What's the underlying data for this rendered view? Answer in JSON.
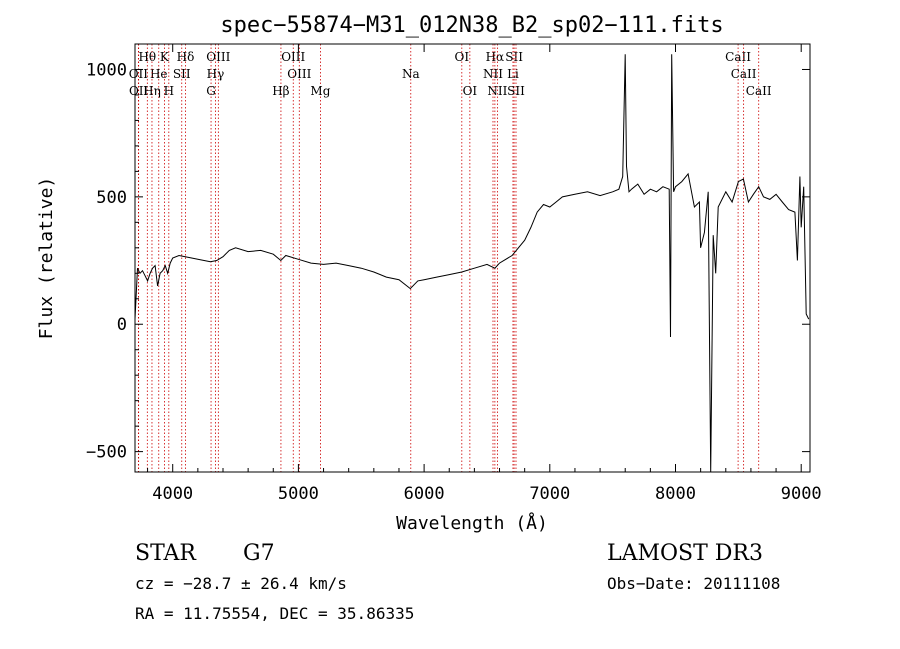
{
  "chart_data": {
    "type": "line",
    "title": "spec−55874−M31_012N38_B2_sp02−111.fits",
    "xlabel": "Wavelength (Å)",
    "ylabel": "Flux (relative)",
    "xlim": [
      3700,
      9070
    ],
    "ylim": [
      -580,
      1100
    ],
    "xticks": [
      4000,
      5000,
      6000,
      7000,
      8000,
      9000
    ],
    "yticks": [
      -500,
      0,
      500,
      1000
    ],
    "line_color": "#000000",
    "marker_color": "#cc0000",
    "grid": false,
    "series": [
      {
        "x": [
          3700,
          3720,
          3740,
          3760,
          3780,
          3800,
          3820,
          3840,
          3860,
          3880,
          3900,
          3920,
          3940,
          3960,
          3980,
          4000,
          4050,
          4100,
          4150,
          4200,
          4250,
          4300,
          4350,
          4400,
          4450,
          4500,
          4600,
          4700,
          4800,
          4860,
          4900,
          5000,
          5100,
          5200,
          5300,
          5400,
          5500,
          5600,
          5700,
          5800,
          5890,
          5950,
          6000,
          6100,
          6200,
          6300,
          6400,
          6500,
          6563,
          6600,
          6700,
          6800,
          6850,
          6900,
          6950,
          7000,
          7050,
          7100,
          7200,
          7300,
          7400,
          7500,
          7550,
          7580,
          7600,
          7610,
          7630,
          7650,
          7700,
          7750,
          7800,
          7850,
          7900,
          7950,
          7960,
          7970,
          7985,
          8000,
          8050,
          8100,
          8150,
          8190,
          8200,
          8230,
          8260,
          8280,
          8300,
          8320,
          8340,
          8400,
          8450,
          8500,
          8540,
          8580,
          8620,
          8662,
          8700,
          8750,
          8800,
          8850,
          8900,
          8950,
          8970,
          8990,
          9000,
          9020,
          9040,
          9060
        ],
        "y": [
          20,
          220,
          200,
          210,
          190,
          170,
          200,
          220,
          230,
          150,
          200,
          210,
          230,
          200,
          240,
          260,
          270,
          265,
          260,
          255,
          250,
          245,
          250,
          265,
          290,
          300,
          285,
          290,
          275,
          250,
          270,
          255,
          240,
          235,
          240,
          230,
          220,
          205,
          185,
          175,
          140,
          170,
          175,
          185,
          195,
          205,
          220,
          235,
          220,
          240,
          270,
          330,
          380,
          440,
          470,
          460,
          480,
          500,
          510,
          520,
          505,
          520,
          530,
          580,
          1060,
          620,
          520,
          530,
          550,
          510,
          530,
          520,
          540,
          530,
          -50,
          1060,
          520,
          540,
          560,
          590,
          460,
          480,
          300,
          360,
          520,
          -580,
          350,
          200,
          460,
          520,
          480,
          560,
          570,
          480,
          510,
          540,
          500,
          490,
          510,
          480,
          450,
          440,
          250,
          580,
          380,
          540,
          40,
          20
        ]
      }
    ],
    "line_markers": [
      {
        "label": "Hθ",
        "x": 3798,
        "row": 1
      },
      {
        "label": "OII",
        "x": 3727,
        "row": 2
      },
      {
        "label": "OII",
        "x": 3729,
        "row": 3
      },
      {
        "label": "He",
        "x": 3889,
        "row": 2
      },
      {
        "label": "Hη",
        "x": 3835,
        "row": 3
      },
      {
        "label": "K",
        "x": 3934,
        "row": 1
      },
      {
        "label": "H",
        "x": 3969,
        "row": 3
      },
      {
        "label": "SII",
        "x": 4072,
        "row": 2
      },
      {
        "label": "Hδ",
        "x": 4102,
        "row": 1
      },
      {
        "label": "OIII",
        "x": 4363,
        "row": 1
      },
      {
        "label": "Hγ",
        "x": 4340,
        "row": 2
      },
      {
        "label": "G",
        "x": 4305,
        "row": 3
      },
      {
        "label": "Hβ",
        "x": 4861,
        "row": 3
      },
      {
        "label": "OIII",
        "x": 4959,
        "row": 1
      },
      {
        "label": "OIII",
        "x": 5007,
        "row": 2
      },
      {
        "label": "Mg",
        "x": 5175,
        "row": 3
      },
      {
        "label": "Na",
        "x": 5894,
        "row": 2
      },
      {
        "label": "OI",
        "x": 6300,
        "row": 1
      },
      {
        "label": "OI",
        "x": 6364,
        "row": 3
      },
      {
        "label": "Hα",
        "x": 6563,
        "row": 1
      },
      {
        "label": "NII",
        "x": 6548,
        "row": 2
      },
      {
        "label": "NII",
        "x": 6583,
        "row": 3
      },
      {
        "label": "SII",
        "x": 6716,
        "row": 1
      },
      {
        "label": "Li",
        "x": 6707,
        "row": 2
      },
      {
        "label": "SII",
        "x": 6731,
        "row": 3
      },
      {
        "label": "CaII",
        "x": 8498,
        "row": 1
      },
      {
        "label": "CaII",
        "x": 8542,
        "row": 2
      },
      {
        "label": "CaII",
        "x": 8662,
        "row": 3
      }
    ]
  },
  "info": {
    "object_class": "STAR",
    "subclass": "G7",
    "survey": "LAMOST DR3",
    "redshift_line": "cz = −28.7 ± 26.4 km/s",
    "obs_date_line": "Obs−Date: 20111108",
    "coords_line": "RA =  11.75554, DEC =  35.86335"
  }
}
